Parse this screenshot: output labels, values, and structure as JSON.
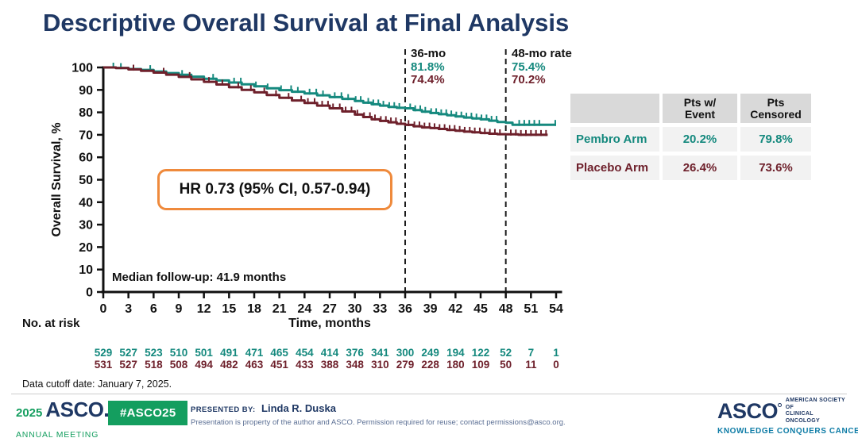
{
  "palette": {
    "navy": "#1f3864",
    "pembro_teal": "#15897e",
    "placebo_maroon": "#6e202b",
    "orange": "#ef8a3c",
    "asco_green": "#149e5f",
    "tagline_blue": "#0e7ca6",
    "muted_blue": "#5b6f94",
    "table_header_bg": "#d9d9d9",
    "table_row_bg": "#f2f2f2",
    "axis_black": "#111111"
  },
  "title": "Descriptive Overall Survival at Final Analysis",
  "chart_data": {
    "type": "line",
    "subtype": "kaplan-meier-step",
    "title": "Descriptive Overall Survival at Final Analysis",
    "xlabel": "Time, months",
    "ylabel": "Overall Survival, %",
    "xlim": [
      0,
      54
    ],
    "ylim": [
      0,
      100
    ],
    "grid": false,
    "xticks": [
      0,
      3,
      6,
      9,
      12,
      15,
      18,
      21,
      24,
      27,
      30,
      33,
      36,
      39,
      42,
      45,
      48,
      51,
      54
    ],
    "yticks": [
      0,
      10,
      20,
      30,
      40,
      50,
      60,
      70,
      80,
      90,
      100
    ],
    "reference_lines_x": [
      36,
      48
    ],
    "hr_label": "HR 0.73 (95% CI, 0.57-0.94)",
    "median_label": "Median follow-up: 41.9 months",
    "annotations": [
      {
        "x": 36,
        "title": "36-mo",
        "pembro": "81.8%",
        "placebo": "74.4%"
      },
      {
        "x": 48,
        "title": "48-mo rate",
        "pembro": "75.4%",
        "placebo": "70.2%"
      }
    ],
    "series": [
      {
        "name": "Pembro Arm",
        "color": "#15897e",
        "rate_36mo": 81.8,
        "rate_48mo": 75.4,
        "steps": [
          [
            0,
            100
          ],
          [
            1.5,
            99.8
          ],
          [
            3,
            99.3
          ],
          [
            4.5,
            98.9
          ],
          [
            6,
            98.2
          ],
          [
            7.5,
            97.5
          ],
          [
            9,
            96.7
          ],
          [
            10.5,
            95.9
          ],
          [
            12,
            95.0
          ],
          [
            13.5,
            94.2
          ],
          [
            15,
            93.3
          ],
          [
            16.5,
            92.5
          ],
          [
            18,
            91.6
          ],
          [
            19.5,
            90.7
          ],
          [
            21,
            89.9
          ],
          [
            22.5,
            89.2
          ],
          [
            24,
            88.4
          ],
          [
            25.5,
            87.6
          ],
          [
            27,
            86.8
          ],
          [
            28.5,
            86.0
          ],
          [
            30,
            85.1
          ],
          [
            31,
            84.3
          ],
          [
            32,
            83.6
          ],
          [
            33,
            83.0
          ],
          [
            34,
            82.4
          ],
          [
            35,
            82.0
          ],
          [
            36,
            81.8
          ],
          [
            37,
            81.0
          ],
          [
            38,
            80.3
          ],
          [
            39,
            79.7
          ],
          [
            40,
            79.2
          ],
          [
            41,
            78.7
          ],
          [
            42,
            78.2
          ],
          [
            43,
            77.7
          ],
          [
            44,
            77.3
          ],
          [
            45,
            76.9
          ],
          [
            46,
            76.3
          ],
          [
            47,
            75.7
          ],
          [
            48,
            75.4
          ],
          [
            48.8,
            74.5
          ],
          [
            54,
            74.5
          ]
        ],
        "censor_months": [
          1.2,
          2.1,
          5.6,
          9.4,
          13.1,
          15.6,
          16.4,
          18.2,
          19.6,
          21.2,
          22.4,
          23.2,
          24.6,
          25.4,
          26.2,
          27.6,
          28.4,
          29.2,
          30.1,
          30.7,
          31.6,
          32.2,
          32.8,
          33.4,
          34.1,
          34.7,
          35.3,
          36.6,
          37.2,
          37.8,
          38.4,
          39.1,
          39.7,
          40.3,
          40.9,
          41.5,
          42.1,
          42.7,
          43.3,
          43.9,
          44.5,
          45.1,
          45.7,
          46.3,
          46.9,
          49.6,
          50.2,
          50.8,
          51.4,
          52.0,
          53.9
        ]
      },
      {
        "name": "Placebo Arm",
        "color": "#6e202b",
        "rate_36mo": 74.4,
        "rate_48mo": 70.2,
        "steps": [
          [
            0,
            100
          ],
          [
            1.5,
            99.7
          ],
          [
            3,
            99.1
          ],
          [
            4.5,
            98.5
          ],
          [
            6,
            97.7
          ],
          [
            7.5,
            96.8
          ],
          [
            9,
            95.8
          ],
          [
            10.5,
            94.7
          ],
          [
            12,
            93.6
          ],
          [
            13.5,
            92.4
          ],
          [
            15,
            91.2
          ],
          [
            16.5,
            90.0
          ],
          [
            18,
            88.9
          ],
          [
            19.5,
            87.7
          ],
          [
            21,
            86.5
          ],
          [
            22.5,
            85.3
          ],
          [
            24,
            84.2
          ],
          [
            25.5,
            83.0
          ],
          [
            27,
            81.8
          ],
          [
            28.5,
            80.4
          ],
          [
            30,
            79.0
          ],
          [
            31,
            77.9
          ],
          [
            32,
            76.9
          ],
          [
            33,
            76.2
          ],
          [
            34,
            75.6
          ],
          [
            35,
            74.9
          ],
          [
            36,
            74.4
          ],
          [
            37,
            73.8
          ],
          [
            38,
            73.3
          ],
          [
            39,
            73.0
          ],
          [
            40,
            72.6
          ],
          [
            41,
            72.2
          ],
          [
            42,
            71.8
          ],
          [
            43,
            71.4
          ],
          [
            44,
            71.1
          ],
          [
            45,
            70.8
          ],
          [
            46,
            70.5
          ],
          [
            47,
            70.3
          ],
          [
            48,
            70.2
          ],
          [
            49.5,
            70.0
          ],
          [
            53,
            70.0
          ]
        ],
        "censor_months": [
          3.6,
          7.2,
          10.3,
          12.6,
          14.2,
          16.1,
          17.6,
          19.2,
          20.6,
          22.1,
          23.6,
          24.4,
          25.2,
          26.1,
          26.8,
          27.4,
          28.2,
          28.9,
          29.6,
          30.3,
          31.1,
          31.8,
          32.4,
          33.1,
          33.7,
          34.3,
          34.9,
          35.5,
          36.4,
          37.1,
          37.7,
          38.3,
          38.9,
          39.5,
          40.1,
          40.7,
          41.3,
          41.9,
          42.5,
          43.1,
          43.7,
          44.3,
          44.9,
          45.5,
          46.1,
          46.7,
          47.3,
          48.6,
          49.2,
          49.8,
          50.4,
          51.0,
          51.6,
          52.2,
          52.8
        ]
      }
    ],
    "at_risk": {
      "label": "No. at risk",
      "rows": [
        {
          "name": "Pembro Arm",
          "color": "#15897e",
          "values": [
            529,
            527,
            523,
            510,
            501,
            491,
            471,
            465,
            454,
            414,
            376,
            341,
            300,
            249,
            194,
            122,
            52,
            7,
            1
          ]
        },
        {
          "name": "Placebo Arm",
          "color": "#6e202b",
          "values": [
            531,
            527,
            518,
            508,
            494,
            482,
            463,
            451,
            433,
            388,
            348,
            310,
            279,
            228,
            180,
            109,
            50,
            11,
            0
          ]
        }
      ]
    }
  },
  "table": {
    "headers": [
      {
        "line1": "",
        "line2": ""
      },
      {
        "line1": "Pts w/",
        "line2": "Event"
      },
      {
        "line1": "Pts",
        "line2": "Censored"
      }
    ],
    "rows": [
      {
        "label": "Pembro Arm",
        "event": "20.2%",
        "censored": "79.8%"
      },
      {
        "label": "Placebo Arm",
        "event": "26.4%",
        "censored": "73.6%"
      }
    ]
  },
  "footer": {
    "cutoff": "Data cutoff date: January 7, 2025.",
    "logo": {
      "year": "2025",
      "name": "ASCO",
      "sub": "ANNUAL MEETING"
    },
    "hashtag": "#ASCO25",
    "presented_by_label": "PRESENTED BY:",
    "presenter": "Linda R. Duska",
    "disclaimer": "Presentation is property of the author and ASCO. Permission required for reuse; contact permissions@asco.org.",
    "right_logo": {
      "name": "ASCO",
      "society_line1": "AMERICAN SOCIETY OF",
      "society_line2": "CLINICAL ONCOLOGY",
      "tagline": "KNOWLEDGE CONQUERS CANCER"
    }
  }
}
